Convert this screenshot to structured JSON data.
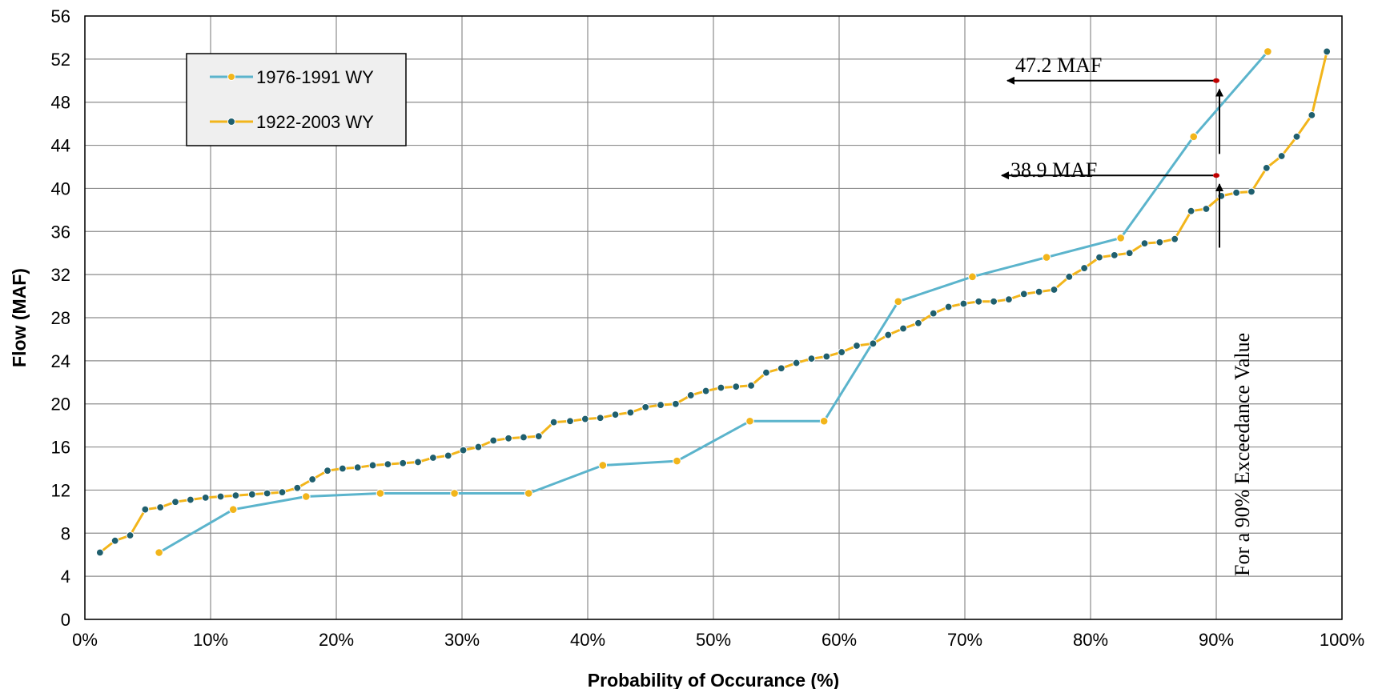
{
  "chart_data": {
    "type": "line",
    "title": "",
    "xlabel": "Probability of Occurance (%)",
    "ylabel": "Flow (MAF)",
    "xlim": [
      0,
      100
    ],
    "ylim": [
      0,
      56
    ],
    "x_ticks": [
      0,
      10,
      20,
      30,
      40,
      50,
      60,
      70,
      80,
      90,
      100
    ],
    "x_tick_labels": [
      "0%",
      "10%",
      "20%",
      "30%",
      "40%",
      "50%",
      "60%",
      "70%",
      "80%",
      "90%",
      "100%"
    ],
    "y_ticks": [
      0,
      4,
      8,
      12,
      16,
      20,
      24,
      28,
      32,
      36,
      40,
      44,
      48,
      52,
      56
    ],
    "y_tick_labels": [
      "0",
      "4",
      "8",
      "12",
      "16",
      "20",
      "24",
      "28",
      "32",
      "36",
      "40",
      "44",
      "48",
      "52",
      "56"
    ],
    "grid": true,
    "legend_position": "top-left",
    "series": [
      {
        "name": "1976-1991 WY",
        "line_color": "#5BB4CC",
        "marker_color": "#F2B51B",
        "x": [
          5.9,
          11.8,
          17.6,
          23.5,
          29.4,
          35.3,
          41.2,
          47.1,
          52.9,
          58.8,
          64.7,
          70.6,
          76.5,
          82.4,
          88.2,
          94.1
        ],
        "y": [
          6.2,
          10.2,
          11.4,
          11.7,
          11.7,
          11.7,
          14.3,
          14.7,
          18.4,
          18.4,
          29.5,
          31.8,
          33.6,
          35.4,
          44.8,
          52.7
        ]
      },
      {
        "name": "1922-2003 WY",
        "line_color": "#F2B51B",
        "marker_color": "#1F5F6E",
        "x": [
          1.2,
          2.4,
          3.6,
          4.8,
          6.0,
          7.2,
          8.4,
          9.6,
          10.8,
          12.0,
          13.3,
          14.5,
          15.7,
          16.9,
          18.1,
          19.3,
          20.5,
          21.7,
          22.9,
          24.1,
          25.3,
          26.5,
          27.7,
          28.9,
          30.1,
          31.3,
          32.5,
          33.7,
          34.9,
          36.1,
          37.3,
          38.6,
          39.8,
          41.0,
          42.2,
          43.4,
          44.6,
          45.8,
          47.0,
          48.2,
          49.4,
          50.6,
          51.8,
          53.0,
          54.2,
          55.4,
          56.6,
          57.8,
          59.0,
          60.2,
          61.4,
          62.7,
          63.9,
          65.1,
          66.3,
          67.5,
          68.7,
          69.9,
          71.1,
          72.3,
          73.5,
          74.7,
          75.9,
          77.1,
          78.3,
          79.5,
          80.7,
          81.9,
          83.1,
          84.3,
          85.5,
          86.7,
          88.0,
          89.2,
          90.4,
          91.6,
          92.8,
          94.0,
          95.2,
          96.4,
          97.6,
          98.8
        ],
        "y": [
          6.2,
          7.3,
          7.8,
          10.2,
          10.4,
          10.9,
          11.1,
          11.3,
          11.4,
          11.5,
          11.6,
          11.7,
          11.8,
          12.2,
          13.0,
          13.8,
          14.0,
          14.1,
          14.3,
          14.4,
          14.5,
          14.6,
          15.0,
          15.2,
          15.7,
          16.0,
          16.6,
          16.8,
          16.9,
          17.0,
          18.3,
          18.4,
          18.6,
          18.7,
          19.0,
          19.2,
          19.7,
          19.9,
          20.0,
          20.8,
          21.2,
          21.5,
          21.6,
          21.7,
          22.9,
          23.3,
          23.8,
          24.2,
          24.4,
          24.8,
          25.4,
          25.6,
          26.4,
          27.0,
          27.5,
          28.4,
          29.0,
          29.3,
          29.5,
          29.5,
          29.7,
          30.2,
          30.4,
          30.6,
          31.8,
          32.6,
          33.6,
          33.8,
          34.0,
          34.9,
          35.0,
          35.3,
          37.9,
          38.1,
          39.3,
          39.6,
          39.7,
          41.9,
          43.0,
          44.8,
          46.8,
          52.7
        ]
      }
    ],
    "annotations": [
      {
        "text": "47.2 MAF",
        "color": "#000000"
      },
      {
        "text": "38.9 MAF",
        "color": "#000000"
      },
      {
        "text": "For a 90% Exceedance Value",
        "color": "#000000"
      }
    ],
    "highlight_points": [
      {
        "x": 90,
        "y": 50.0,
        "color": "#C00000"
      },
      {
        "x": 90,
        "y": 41.2,
        "color": "#C00000"
      }
    ]
  }
}
